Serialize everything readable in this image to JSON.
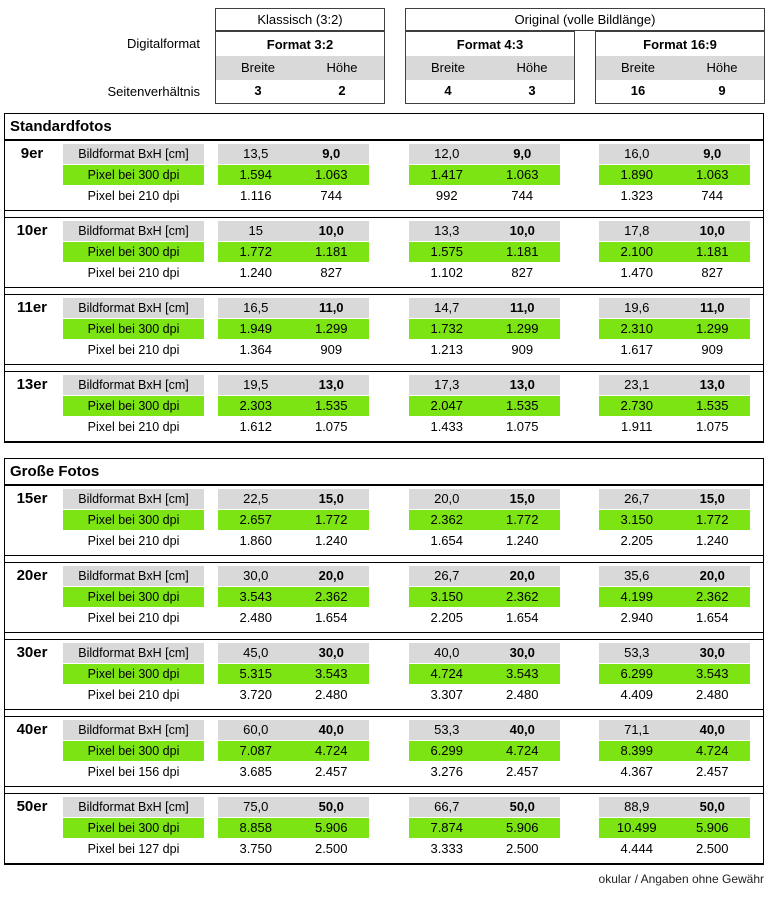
{
  "colors": {
    "green": "#7CE412",
    "gray": "#D9D9D9"
  },
  "header": {
    "digitalformat_label": "Digitalformat",
    "seitenverhaeltnis_label": "Seitenverhältnis",
    "klassisch_title": "Klassisch (3:2)",
    "original_title": "Original (volle Bildlänge)",
    "formats": [
      {
        "name": "Format 3:2",
        "breite_label": "Breite",
        "hoehe_label": "Höhe",
        "ratio_breite": "3",
        "ratio_hoehe": "2"
      },
      {
        "name": "Format 4:3",
        "breite_label": "Breite",
        "hoehe_label": "Höhe",
        "ratio_breite": "4",
        "ratio_hoehe": "3"
      },
      {
        "name": "Format 16:9",
        "breite_label": "Breite",
        "hoehe_label": "Höhe",
        "ratio_breite": "16",
        "ratio_hoehe": "9"
      }
    ]
  },
  "sections": [
    {
      "title": "Standardfotos",
      "groups": [
        {
          "size": "9er",
          "rows": [
            {
              "label": "Bildformat BxH [cm]",
              "style": "gray",
              "values": [
                [
                  "13,5",
                  "9,0"
                ],
                [
                  "12,0",
                  "9,0"
                ],
                [
                  "16,0",
                  "9,0"
                ]
              ]
            },
            {
              "label": "Pixel bei 300 dpi",
              "style": "green",
              "values": [
                [
                  "1.594",
                  "1.063"
                ],
                [
                  "1.417",
                  "1.063"
                ],
                [
                  "1.890",
                  "1.063"
                ]
              ]
            },
            {
              "label": "Pixel bei 210 dpi",
              "style": "plain",
              "values": [
                [
                  "1.116",
                  "744"
                ],
                [
                  "992",
                  "744"
                ],
                [
                  "1.323",
                  "744"
                ]
              ]
            }
          ]
        },
        {
          "size": "10er",
          "rows": [
            {
              "label": "Bildformat BxH [cm]",
              "style": "gray",
              "values": [
                [
                  "15",
                  "10,0"
                ],
                [
                  "13,3",
                  "10,0"
                ],
                [
                  "17,8",
                  "10,0"
                ]
              ]
            },
            {
              "label": "Pixel bei 300 dpi",
              "style": "green",
              "values": [
                [
                  "1.772",
                  "1.181"
                ],
                [
                  "1.575",
                  "1.181"
                ],
                [
                  "2.100",
                  "1.181"
                ]
              ]
            },
            {
              "label": "Pixel bei 210 dpi",
              "style": "plain",
              "values": [
                [
                  "1.240",
                  "827"
                ],
                [
                  "1.102",
                  "827"
                ],
                [
                  "1.470",
                  "827"
                ]
              ]
            }
          ]
        },
        {
          "size": "11er",
          "rows": [
            {
              "label": "Bildformat BxH [cm]",
              "style": "gray",
              "values": [
                [
                  "16,5",
                  "11,0"
                ],
                [
                  "14,7",
                  "11,0"
                ],
                [
                  "19,6",
                  "11,0"
                ]
              ]
            },
            {
              "label": "Pixel bei 300 dpi",
              "style": "green",
              "values": [
                [
                  "1.949",
                  "1.299"
                ],
                [
                  "1.732",
                  "1.299"
                ],
                [
                  "2.310",
                  "1.299"
                ]
              ]
            },
            {
              "label": "Pixel bei 210 dpi",
              "style": "plain",
              "values": [
                [
                  "1.364",
                  "909"
                ],
                [
                  "1.213",
                  "909"
                ],
                [
                  "1.617",
                  "909"
                ]
              ]
            }
          ]
        },
        {
          "size": "13er",
          "rows": [
            {
              "label": "Bildformat BxH [cm]",
              "style": "gray",
              "values": [
                [
                  "19,5",
                  "13,0"
                ],
                [
                  "17,3",
                  "13,0"
                ],
                [
                  "23,1",
                  "13,0"
                ]
              ]
            },
            {
              "label": "Pixel bei 300 dpi",
              "style": "green",
              "values": [
                [
                  "2.303",
                  "1.535"
                ],
                [
                  "2.047",
                  "1.535"
                ],
                [
                  "2.730",
                  "1.535"
                ]
              ]
            },
            {
              "label": "Pixel bei 210 dpi",
              "style": "plain",
              "values": [
                [
                  "1.612",
                  "1.075"
                ],
                [
                  "1.433",
                  "1.075"
                ],
                [
                  "1.911",
                  "1.075"
                ]
              ]
            }
          ]
        }
      ]
    },
    {
      "title": "Große Fotos",
      "groups": [
        {
          "size": "15er",
          "rows": [
            {
              "label": "Bildformat BxH [cm]",
              "style": "gray",
              "values": [
                [
                  "22,5",
                  "15,0"
                ],
                [
                  "20,0",
                  "15,0"
                ],
                [
                  "26,7",
                  "15,0"
                ]
              ]
            },
            {
              "label": "Pixel bei 300 dpi",
              "style": "green",
              "values": [
                [
                  "2.657",
                  "1.772"
                ],
                [
                  "2.362",
                  "1.772"
                ],
                [
                  "3.150",
                  "1.772"
                ]
              ]
            },
            {
              "label": "Pixel bei 210 dpi",
              "style": "plain",
              "values": [
                [
                  "1.860",
                  "1.240"
                ],
                [
                  "1.654",
                  "1.240"
                ],
                [
                  "2.205",
                  "1.240"
                ]
              ]
            }
          ]
        },
        {
          "size": "20er",
          "rows": [
            {
              "label": "Bildformat BxH [cm]",
              "style": "gray",
              "values": [
                [
                  "30,0",
                  "20,0"
                ],
                [
                  "26,7",
                  "20,0"
                ],
                [
                  "35,6",
                  "20,0"
                ]
              ]
            },
            {
              "label": "Pixel bei 300 dpi",
              "style": "green",
              "values": [
                [
                  "3.543",
                  "2.362"
                ],
                [
                  "3.150",
                  "2.362"
                ],
                [
                  "4.199",
                  "2.362"
                ]
              ]
            },
            {
              "label": "Pixel bei 210 dpi",
              "style": "plain",
              "values": [
                [
                  "2.480",
                  "1.654"
                ],
                [
                  "2.205",
                  "1.654"
                ],
                [
                  "2.940",
                  "1.654"
                ]
              ]
            }
          ]
        },
        {
          "size": "30er",
          "rows": [
            {
              "label": "Bildformat BxH [cm]",
              "style": "gray",
              "values": [
                [
                  "45,0",
                  "30,0"
                ],
                [
                  "40,0",
                  "30,0"
                ],
                [
                  "53,3",
                  "30,0"
                ]
              ]
            },
            {
              "label": "Pixel bei 300 dpi",
              "style": "green",
              "values": [
                [
                  "5.315",
                  "3.543"
                ],
                [
                  "4.724",
                  "3.543"
                ],
                [
                  "6.299",
                  "3.543"
                ]
              ]
            },
            {
              "label": "Pixel bei 210 dpi",
              "style": "plain",
              "values": [
                [
                  "3.720",
                  "2.480"
                ],
                [
                  "3.307",
                  "2.480"
                ],
                [
                  "4.409",
                  "2.480"
                ]
              ]
            }
          ]
        },
        {
          "size": "40er",
          "rows": [
            {
              "label": "Bildformat BxH [cm]",
              "style": "gray",
              "values": [
                [
                  "60,0",
                  "40,0"
                ],
                [
                  "53,3",
                  "40,0"
                ],
                [
                  "71,1",
                  "40,0"
                ]
              ]
            },
            {
              "label": "Pixel bei 300 dpi",
              "style": "green",
              "values": [
                [
                  "7.087",
                  "4.724"
                ],
                [
                  "6.299",
                  "4.724"
                ],
                [
                  "8.399",
                  "4.724"
                ]
              ]
            },
            {
              "label": "Pixel bei 156 dpi",
              "style": "plain",
              "values": [
                [
                  "3.685",
                  "2.457"
                ],
                [
                  "3.276",
                  "2.457"
                ],
                [
                  "4.367",
                  "2.457"
                ]
              ]
            }
          ]
        },
        {
          "size": "50er",
          "rows": [
            {
              "label": "Bildformat BxH [cm]",
              "style": "gray",
              "values": [
                [
                  "75,0",
                  "50,0"
                ],
                [
                  "66,7",
                  "50,0"
                ],
                [
                  "88,9",
                  "50,0"
                ]
              ]
            },
            {
              "label": "Pixel bei 300 dpi",
              "style": "green",
              "values": [
                [
                  "8.858",
                  "5.906"
                ],
                [
                  "7.874",
                  "5.906"
                ],
                [
                  "10.499",
                  "5.906"
                ]
              ]
            },
            {
              "label": "Pixel bei 127 dpi",
              "style": "plain",
              "values": [
                [
                  "3.750",
                  "2.500"
                ],
                [
                  "3.333",
                  "2.500"
                ],
                [
                  "4.444",
                  "2.500"
                ]
              ]
            }
          ]
        }
      ]
    }
  ],
  "footer": {
    "credit": "okular / Angaben ohne Gewähr"
  }
}
